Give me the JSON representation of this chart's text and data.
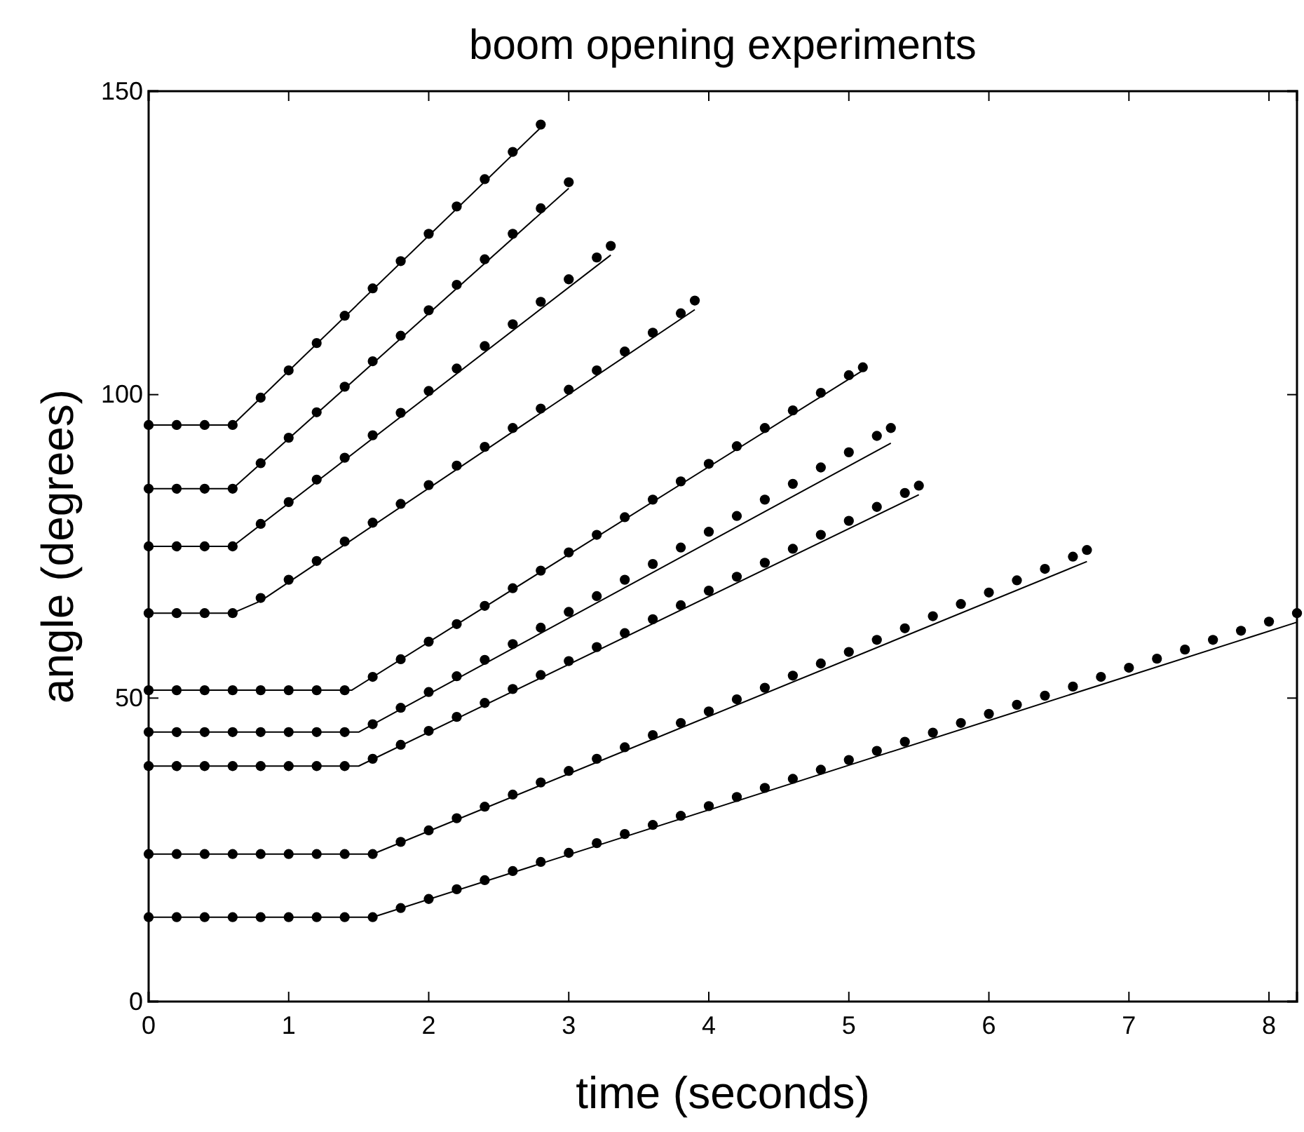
{
  "chart_data": {
    "type": "scatter",
    "title": "boom opening experiments",
    "xlabel": "time (seconds)",
    "ylabel": "angle (degrees)",
    "xlim": [
      0,
      8.2
    ],
    "ylim": [
      0,
      150
    ],
    "xticks": [
      0,
      1,
      2,
      3,
      4,
      5,
      6,
      7,
      8
    ],
    "yticks": [
      0,
      50,
      100,
      150
    ],
    "marker": "circle",
    "series": [
      {
        "color": "#000000",
        "x": [
          0,
          0.2,
          0.4,
          0.6,
          0.8,
          1.0,
          1.2,
          1.4,
          1.6,
          1.8,
          2.0,
          2.2,
          2.4,
          2.6,
          2.8
        ],
        "values": [
          95,
          95,
          95,
          95,
          99.5,
          104,
          108.5,
          113,
          117.5,
          122,
          126.5,
          131,
          135.5,
          140,
          144.5
        ]
      },
      {
        "type": "line",
        "color": "#000000",
        "marker": "none",
        "x": [
          0,
          0.6,
          2.8
        ],
        "values": [
          95,
          95,
          144
        ]
      },
      {
        "color": "#000000",
        "x": [
          0,
          0.2,
          0.4,
          0.6,
          0.8,
          1.0,
          1.2,
          1.4,
          1.6,
          1.8,
          2.0,
          2.2,
          2.4,
          2.6,
          2.8,
          3.0
        ],
        "values": [
          84.5,
          84.5,
          84.5,
          84.5,
          88.7,
          92.9,
          97.1,
          101.3,
          105.5,
          109.7,
          113.9,
          118.1,
          122.3,
          126.5,
          130.7,
          135
        ]
      },
      {
        "type": "line",
        "color": "#000000",
        "marker": "none",
        "x": [
          0,
          0.6,
          3.0
        ],
        "values": [
          84.5,
          84.5,
          134
        ]
      },
      {
        "color": "#000000",
        "x": [
          0,
          0.2,
          0.4,
          0.6,
          0.8,
          1.0,
          1.2,
          1.4,
          1.6,
          1.8,
          2.0,
          2.2,
          2.4,
          2.6,
          2.8,
          3.0,
          3.2,
          3.3
        ],
        "values": [
          75,
          75,
          75,
          75,
          78.7,
          82.3,
          86,
          89.6,
          93.3,
          97,
          100.6,
          104.3,
          108,
          111.6,
          115.3,
          119,
          122.6,
          124.5
        ]
      },
      {
        "type": "line",
        "color": "#000000",
        "marker": "none",
        "x": [
          0,
          0.6,
          3.3
        ],
        "values": [
          75,
          75,
          123
        ]
      },
      {
        "color": "#000000",
        "x": [
          0,
          0.2,
          0.4,
          0.6,
          0.8,
          1.0,
          1.2,
          1.4,
          1.6,
          1.8,
          2.0,
          2.2,
          2.4,
          2.6,
          2.8,
          3.0,
          3.2,
          3.4,
          3.6,
          3.8,
          3.9
        ],
        "values": [
          64,
          64,
          64,
          64,
          66.5,
          69.5,
          72.6,
          75.8,
          78.9,
          82,
          85.1,
          88.3,
          91.4,
          94.5,
          97.7,
          100.8,
          104,
          107.1,
          110.2,
          113.4,
          115.5
        ]
      },
      {
        "type": "line",
        "color": "#000000",
        "marker": "none",
        "x": [
          0,
          0.6,
          0.8,
          3.9
        ],
        "values": [
          64,
          64,
          66,
          114
        ]
      },
      {
        "color": "#000000",
        "x": [
          0,
          0.2,
          0.4,
          0.6,
          0.8,
          1.0,
          1.2,
          1.4,
          1.6,
          1.8,
          2.0,
          2.2,
          2.4,
          2.6,
          2.8,
          3.0,
          3.2,
          3.4,
          3.6,
          3.8,
          4.0,
          4.2,
          4.4,
          4.6,
          4.8,
          5.0,
          5.1
        ],
        "values": [
          51.3,
          51.3,
          51.3,
          51.3,
          51.3,
          51.3,
          51.3,
          51.3,
          53.5,
          56.4,
          59.3,
          62.2,
          65.2,
          68.1,
          71,
          74,
          76.9,
          79.8,
          82.7,
          85.7,
          88.6,
          91.5,
          94.5,
          97.4,
          100.3,
          103.2,
          104.5
        ]
      },
      {
        "type": "line",
        "color": "#000000",
        "marker": "none",
        "x": [
          0,
          1.45,
          5.1
        ],
        "values": [
          51.3,
          51.3,
          104
        ]
      },
      {
        "color": "#000000",
        "x": [
          0,
          0.2,
          0.4,
          0.6,
          0.8,
          1.0,
          1.2,
          1.4,
          1.6,
          1.8,
          2.0,
          2.2,
          2.4,
          2.6,
          2.8,
          3.0,
          3.2,
          3.4,
          3.6,
          3.8,
          4.0,
          4.2,
          4.4,
          4.6,
          4.8,
          5.0,
          5.2,
          5.3
        ],
        "values": [
          44.4,
          44.4,
          44.4,
          44.4,
          44.4,
          44.4,
          44.4,
          44.4,
          45.7,
          48.4,
          51,
          53.6,
          56.3,
          58.9,
          61.6,
          64.2,
          66.8,
          69.5,
          72.1,
          74.8,
          77.4,
          80,
          82.7,
          85.3,
          88,
          90.5,
          93.2,
          94.5
        ]
      },
      {
        "type": "line",
        "color": "#000000",
        "marker": "none",
        "x": [
          0,
          1.5,
          5.3
        ],
        "values": [
          44.4,
          44.4,
          92
        ]
      },
      {
        "color": "#000000",
        "x": [
          0,
          0.2,
          0.4,
          0.6,
          0.8,
          1.0,
          1.2,
          1.4,
          1.6,
          1.8,
          2.0,
          2.2,
          2.4,
          2.6,
          2.8,
          3.0,
          3.2,
          3.4,
          3.6,
          3.8,
          4.0,
          4.2,
          4.4,
          4.6,
          4.8,
          5.0,
          5.2,
          5.4,
          5.5
        ],
        "values": [
          38.8,
          38.8,
          38.8,
          38.8,
          38.8,
          38.8,
          38.8,
          38.8,
          40,
          42.3,
          44.6,
          46.9,
          49.2,
          51.5,
          53.8,
          56.1,
          58.4,
          60.7,
          63,
          65.3,
          67.7,
          70,
          72.3,
          74.6,
          76.9,
          79.2,
          81.5,
          83.8,
          85
        ]
      },
      {
        "type": "line",
        "color": "#000000",
        "marker": "none",
        "x": [
          0,
          1.5,
          5.5
        ],
        "values": [
          38.8,
          38.8,
          83.5
        ]
      },
      {
        "color": "#000000",
        "x": [
          0,
          0.2,
          0.4,
          0.6,
          0.8,
          1.0,
          1.2,
          1.4,
          1.6,
          1.8,
          2.0,
          2.2,
          2.4,
          2.6,
          2.8,
          3.0,
          3.2,
          3.4,
          3.6,
          3.8,
          4.0,
          4.2,
          4.4,
          4.6,
          4.8,
          5.0,
          5.2,
          5.4,
          5.6,
          5.8,
          6.0,
          6.2,
          6.4,
          6.6,
          6.7
        ],
        "values": [
          24.3,
          24.3,
          24.3,
          24.3,
          24.3,
          24.3,
          24.3,
          24.3,
          24.3,
          26.3,
          28.2,
          30.2,
          32.1,
          34.1,
          36.1,
          38,
          40,
          41.9,
          43.9,
          45.9,
          47.8,
          49.8,
          51.7,
          53.7,
          55.7,
          57.6,
          59.6,
          61.5,
          63.5,
          65.5,
          67.4,
          69.4,
          71.3,
          73.3,
          74.4
        ]
      },
      {
        "type": "line",
        "color": "#000000",
        "marker": "none",
        "x": [
          0,
          1.6,
          6.7
        ],
        "values": [
          24.3,
          24.3,
          72.5
        ]
      },
      {
        "color": "#000000",
        "x": [
          0,
          0.2,
          0.4,
          0.6,
          0.8,
          1.0,
          1.2,
          1.4,
          1.6,
          1.8,
          2.0,
          2.2,
          2.4,
          2.6,
          2.8,
          3.0,
          3.2,
          3.4,
          3.6,
          3.8,
          4.0,
          4.2,
          4.4,
          4.6,
          4.8,
          5.0,
          5.2,
          5.4,
          5.6,
          5.8,
          6.0,
          6.2,
          6.4,
          6.6,
          6.8,
          7.0,
          7.2,
          7.4,
          7.6,
          7.8,
          8.0,
          8.2
        ],
        "values": [
          13.9,
          13.9,
          13.9,
          13.9,
          13.9,
          13.9,
          13.9,
          13.9,
          13.9,
          15.4,
          16.9,
          18.5,
          20,
          21.5,
          23,
          24.5,
          26.1,
          27.6,
          29.1,
          30.6,
          32.2,
          33.7,
          35.2,
          36.7,
          38.2,
          39.8,
          41.3,
          42.8,
          44.3,
          45.9,
          47.4,
          48.9,
          50.4,
          51.9,
          53.5,
          55,
          56.5,
          58,
          59.6,
          61.1,
          62.6,
          64
        ]
      },
      {
        "type": "line",
        "color": "#000000",
        "marker": "none",
        "x": [
          0,
          1.6,
          8.2
        ],
        "values": [
          13.9,
          13.9,
          62.5
        ]
      }
    ]
  }
}
